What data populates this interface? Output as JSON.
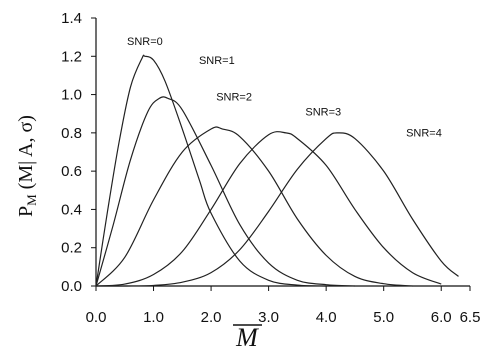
{
  "chart_data": {
    "type": "line",
    "title": "",
    "xlabel": "M",
    "ylabel": {
      "base": "P",
      "sub": "M",
      "rest": " (M| A, σ)"
    },
    "xlim": [
      0,
      6.5
    ],
    "ylim": [
      0,
      1.4
    ],
    "xticks": [
      0,
      1,
      2,
      3,
      4,
      5,
      6,
      6.5
    ],
    "xtick_labels": [
      "0.0",
      "1.0",
      "2.0",
      "3.0",
      "4.0",
      "5.0",
      "6.0",
      "6.5"
    ],
    "yticks": [
      0,
      0.2,
      0.4,
      0.6,
      0.8,
      1.0,
      1.2,
      1.4
    ],
    "ytick_labels": [
      "0.0",
      "0.2",
      "0.4",
      "0.6",
      "0.8",
      "1.0",
      "1.2",
      "1.4"
    ],
    "grid": false,
    "series": [
      {
        "name": "SNR=0",
        "x": [
          0,
          0.2,
          0.4,
          0.6,
          0.8,
          0.85,
          1.0,
          1.2,
          1.5,
          1.8,
          2.0,
          2.5,
          3.0,
          3.5,
          4.0
        ],
        "y": [
          0,
          0.39,
          0.75,
          1.04,
          1.19,
          1.2,
          1.18,
          1.07,
          0.82,
          0.55,
          0.38,
          0.13,
          0.03,
          0.005,
          0
        ]
      },
      {
        "name": "SNR=1",
        "x": [
          0,
          0.3,
          0.6,
          0.9,
          1.1,
          1.25,
          1.5,
          2.0,
          2.5,
          3.0,
          3.5,
          4.0,
          4.5
        ],
        "y": [
          0,
          0.32,
          0.66,
          0.91,
          0.98,
          0.98,
          0.92,
          0.63,
          0.32,
          0.12,
          0.03,
          0.007,
          0
        ]
      },
      {
        "name": "SNR=2",
        "x": [
          0,
          0.5,
          1.0,
          1.5,
          2.0,
          2.2,
          2.5,
          3.0,
          3.5,
          4.0,
          4.5,
          5.0,
          5.5
        ],
        "y": [
          0,
          0.15,
          0.45,
          0.7,
          0.82,
          0.82,
          0.78,
          0.6,
          0.35,
          0.16,
          0.05,
          0.012,
          0
        ]
      },
      {
        "name": "SNR=3",
        "x": [
          0,
          0.5,
          1.0,
          1.5,
          2.0,
          2.5,
          3.0,
          3.3,
          3.5,
          4.0,
          4.5,
          5.0,
          5.5,
          6.0
        ],
        "y": [
          0,
          0.01,
          0.06,
          0.18,
          0.4,
          0.64,
          0.79,
          0.8,
          0.77,
          0.63,
          0.4,
          0.2,
          0.07,
          0.01
        ]
      },
      {
        "name": "SNR=4",
        "x": [
          0,
          0.5,
          1.0,
          1.5,
          2.0,
          2.5,
          3.0,
          3.5,
          4.0,
          4.2,
          4.5,
          5.0,
          5.5,
          6.0,
          6.3
        ],
        "y": [
          0,
          0.0,
          0.003,
          0.02,
          0.07,
          0.19,
          0.39,
          0.61,
          0.77,
          0.8,
          0.77,
          0.6,
          0.35,
          0.13,
          0.05
        ]
      }
    ],
    "annotations": [
      {
        "text": "SNR=0",
        "x": 0.85,
        "y": 1.26
      },
      {
        "text": "SNR=1",
        "x": 2.1,
        "y": 1.16
      },
      {
        "text": "SNR=2",
        "x": 2.4,
        "y": 0.97
      },
      {
        "text": "SNR=3",
        "x": 3.95,
        "y": 0.89
      },
      {
        "text": "SNR=4",
        "x": 5.7,
        "y": 0.78
      }
    ]
  }
}
